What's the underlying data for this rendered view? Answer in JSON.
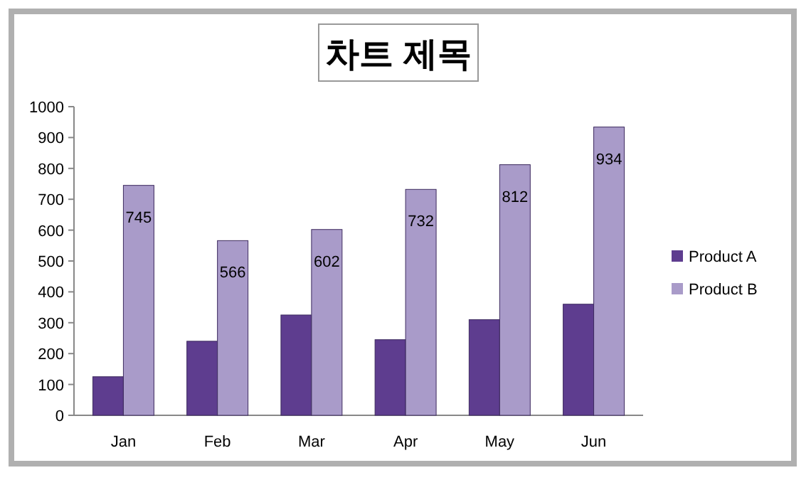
{
  "chart_data": {
    "type": "bar",
    "title": "차트 제목",
    "categories": [
      "Jan",
      "Feb",
      "Mar",
      "Apr",
      "May",
      "Jun"
    ],
    "series": [
      {
        "name": "Product A",
        "color": "#5e3d8f",
        "values": [
          125,
          240,
          325,
          245,
          310,
          360
        ]
      },
      {
        "name": "Product B",
        "color": "#a99bc9",
        "values": [
          745,
          566,
          602,
          732,
          812,
          934
        ],
        "value_labels": [
          "745",
          "566",
          "602",
          "732",
          "812",
          "934"
        ]
      }
    ],
    "ylim": [
      0,
      1000
    ],
    "yticks": [
      0,
      100,
      200,
      300,
      400,
      500,
      600,
      700,
      800,
      900,
      1000
    ],
    "grid": false,
    "legend": "right"
  }
}
